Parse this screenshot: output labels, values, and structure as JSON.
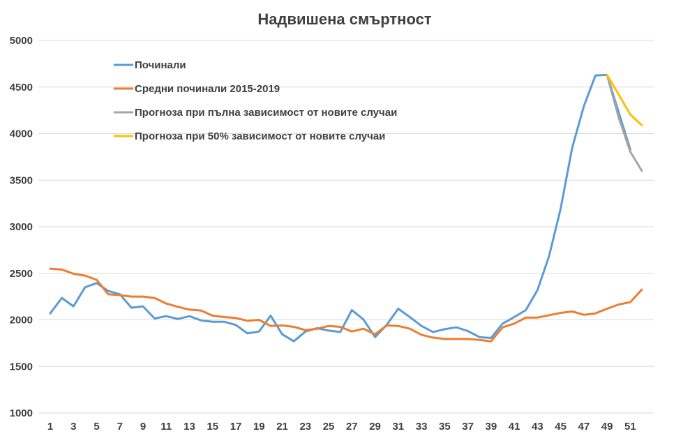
{
  "chart_data": {
    "type": "line",
    "title": "Надвишена смъртност",
    "xlabel": "",
    "ylabel": "",
    "ylim": [
      1000,
      5000
    ],
    "yticks": [
      1000,
      1500,
      2000,
      2500,
      3000,
      3500,
      4000,
      4500,
      5000
    ],
    "xlim": [
      1,
      52
    ],
    "xticks": [
      1,
      3,
      5,
      7,
      9,
      11,
      13,
      15,
      17,
      19,
      21,
      23,
      25,
      27,
      29,
      31,
      33,
      35,
      37,
      39,
      41,
      43,
      45,
      47,
      49,
      51
    ],
    "grid": "horizontal",
    "legend_position": "top-left",
    "series": [
      {
        "name": "Починали",
        "color": "#5b9bd5",
        "x": [
          1,
          2,
          3,
          4,
          5,
          6,
          7,
          8,
          9,
          10,
          11,
          12,
          13,
          14,
          15,
          16,
          17,
          18,
          19,
          20,
          21,
          22,
          23,
          24,
          25,
          26,
          27,
          28,
          29,
          30,
          31,
          32,
          33,
          34,
          35,
          36,
          37,
          38,
          39,
          40,
          41,
          42,
          43,
          44,
          45,
          46,
          47,
          48,
          49,
          50,
          51
        ],
        "values": [
          2070,
          2235,
          2145,
          2350,
          2395,
          2310,
          2275,
          2130,
          2145,
          2015,
          2040,
          2010,
          2040,
          1995,
          1980,
          1980,
          1945,
          1855,
          1875,
          2045,
          1845,
          1770,
          1875,
          1910,
          1885,
          1870,
          2105,
          2005,
          1815,
          1945,
          2120,
          2030,
          1935,
          1870,
          1900,
          1920,
          1880,
          1815,
          1805,
          1960,
          2030,
          2105,
          2320,
          2685,
          3195,
          3850,
          4295,
          4625,
          4630,
          4230,
          3830
        ]
      },
      {
        "name": "Средни починали 2015-2019",
        "color": "#ed7d31",
        "x": [
          1,
          2,
          3,
          4,
          5,
          6,
          7,
          8,
          9,
          10,
          11,
          12,
          13,
          14,
          15,
          16,
          17,
          18,
          19,
          20,
          21,
          22,
          23,
          24,
          25,
          26,
          27,
          28,
          29,
          30,
          31,
          32,
          33,
          34,
          35,
          36,
          37,
          38,
          39,
          40,
          41,
          42,
          43,
          44,
          45,
          46,
          47,
          48,
          49,
          50,
          51,
          52
        ],
        "values": [
          2550,
          2540,
          2495,
          2475,
          2430,
          2275,
          2265,
          2250,
          2250,
          2235,
          2175,
          2140,
          2110,
          2100,
          2045,
          2030,
          2020,
          1990,
          2000,
          1935,
          1940,
          1925,
          1890,
          1905,
          1935,
          1925,
          1875,
          1905,
          1845,
          1940,
          1935,
          1905,
          1840,
          1810,
          1795,
          1795,
          1795,
          1785,
          1770,
          1920,
          1960,
          2025,
          2025,
          2050,
          2075,
          2090,
          2055,
          2070,
          2120,
          2165,
          2190,
          2325
        ]
      },
      {
        "name": "Прогноза при пълна зависимост от новите случаи",
        "color": "#a5a5a5",
        "x": [
          49,
          50,
          51,
          52
        ],
        "values": [
          4630,
          4175,
          3805,
          3600
        ]
      },
      {
        "name": "Прогноза при 50% зависимост от новите случаи",
        "color": "#ffc000",
        "x": [
          49,
          50,
          51,
          52
        ],
        "values": [
          4630,
          4420,
          4205,
          4090
        ]
      }
    ]
  }
}
